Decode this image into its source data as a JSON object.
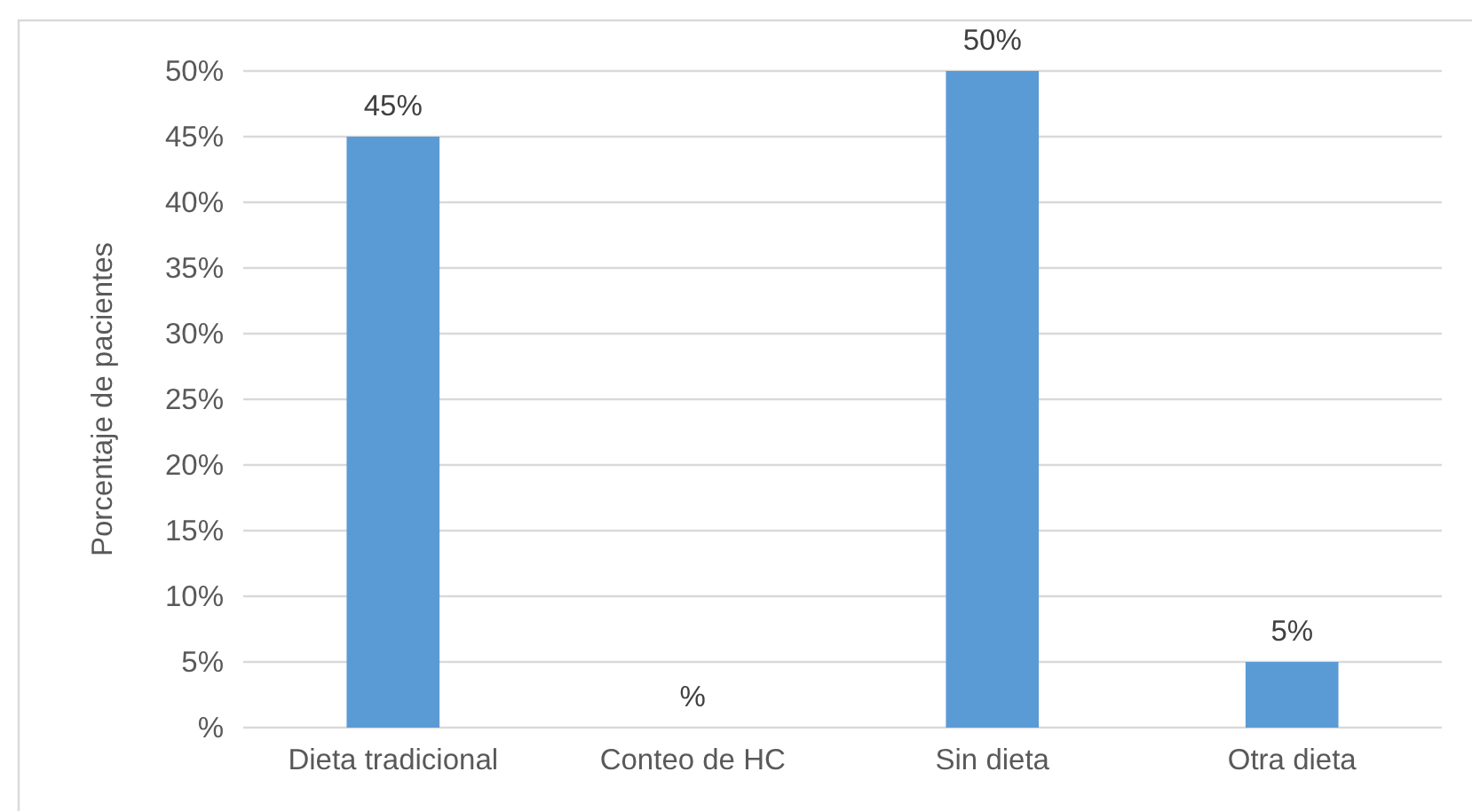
{
  "chart_data": {
    "type": "bar",
    "ylabel": "Porcentaje de pacientes",
    "categories": [
      "Dieta tradicional",
      "Conteo de HC",
      "Sin dieta",
      "Otra dieta"
    ],
    "values": [
      45,
      0,
      50,
      5
    ],
    "color": "#5b9bd5",
    "value_labels": [
      "45%",
      "%",
      "50%",
      "5%"
    ],
    "ylim": [
      0,
      50
    ],
    "yticks": [
      {
        "value": 0,
        "label": "%"
      },
      {
        "value": 5,
        "label": "5%"
      },
      {
        "value": 10,
        "label": "10%"
      },
      {
        "value": 15,
        "label": "15%"
      },
      {
        "value": 20,
        "label": "20%"
      },
      {
        "value": 25,
        "label": "25%"
      },
      {
        "value": 30,
        "label": "30%"
      },
      {
        "value": 35,
        "label": "35%"
      },
      {
        "value": 40,
        "label": "40%"
      },
      {
        "value": 45,
        "label": "45%"
      },
      {
        "value": 50,
        "label": "50%"
      }
    ],
    "grid": "y",
    "legend": false
  }
}
